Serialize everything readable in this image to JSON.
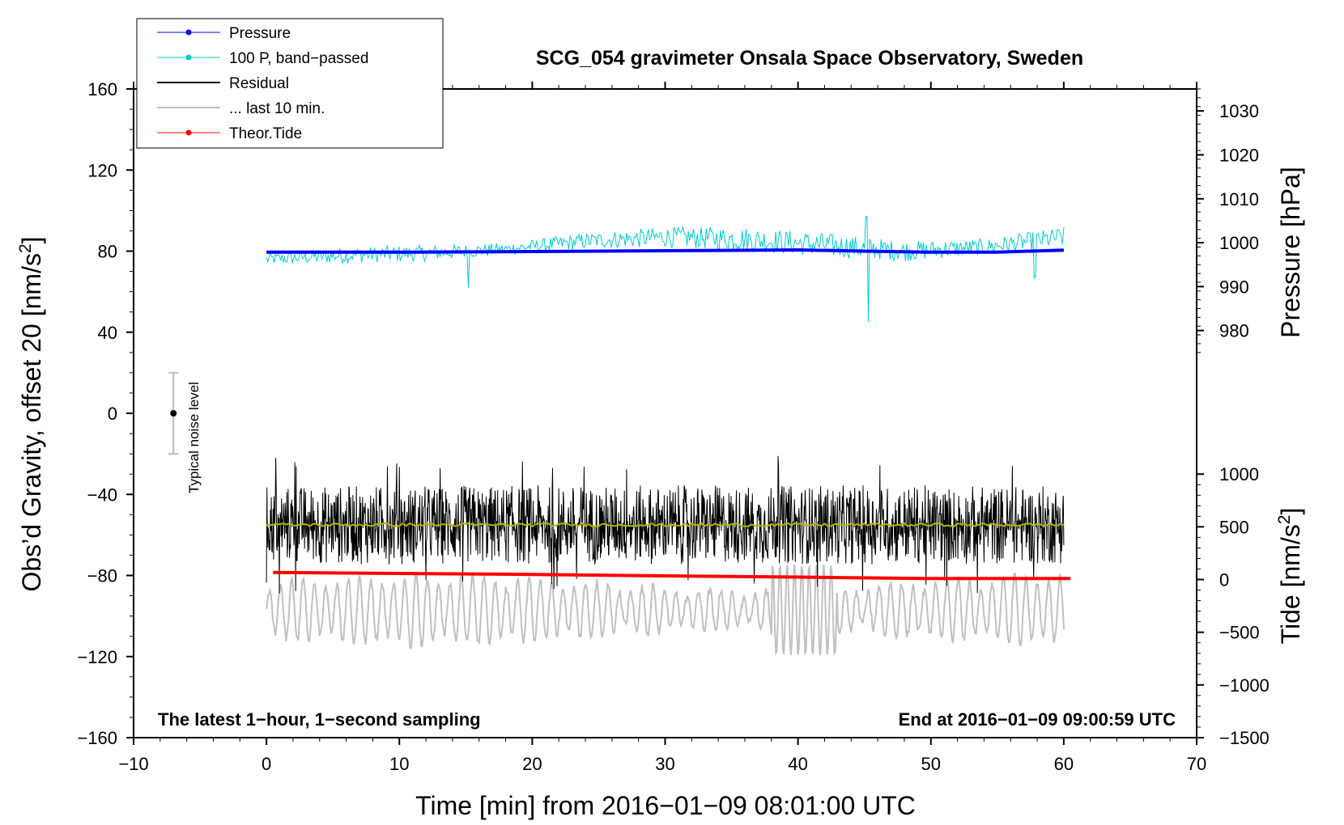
{
  "chart_data": {
    "type": "line",
    "title": "SCG_054 gravimeter Onsala Space Observatory, Sweden",
    "xlabel": "Time [min] from 2016−01−09 08:01:00 UTC",
    "ylabel_left_main": "Obs’d Gravity, offset 20 [nm/s",
    "ylabel_left_sup": "2",
    "ylabel_left_close": "]",
    "ylabel_pressure": "Pressure [hPa]",
    "ylabel_tide_main": "Tide [nm/s",
    "ylabel_tide_sup": "2",
    "ylabel_tide_close": "]",
    "xlim": [
      -10,
      70
    ],
    "ylim": [
      -160,
      160
    ],
    "x_ticks": [
      "−10",
      "0",
      "10",
      "20",
      "30",
      "40",
      "50",
      "60",
      "70"
    ],
    "x_tick_values": [
      -10,
      0,
      10,
      20,
      30,
      40,
      50,
      60,
      70
    ],
    "y_ticks": [
      "160",
      "120",
      "80",
      "40",
      "0",
      "−40",
      "−80",
      "−120",
      "−160"
    ],
    "y_tick_values": [
      160,
      120,
      80,
      40,
      0,
      -40,
      -80,
      -120,
      -160
    ],
    "pressure_axis": {
      "ticks": [
        "1030",
        "1020",
        "1010",
        "1000",
        "990",
        "980"
      ],
      "tick_values": [
        1030,
        1020,
        1010,
        1000,
        990,
        980
      ],
      "range": [
        975,
        1035
      ],
      "left_equivalent": [
        30,
        160
      ]
    },
    "tide_axis": {
      "ticks": [
        "1000",
        "500",
        "0",
        "−500",
        "−1000",
        "−1500"
      ],
      "tick_values": [
        1000,
        500,
        0,
        -500,
        -1000,
        -1500
      ],
      "range": [
        -1500,
        1000
      ],
      "left_equivalent": [
        -160,
        -30
      ]
    },
    "annotations": {
      "left": "The latest 1−hour, 1−second sampling",
      "right": "End at 2016−01−09 09:00:59 UTC",
      "noise_label": "Typical noise level"
    },
    "noise_bar": {
      "x": -7,
      "center": 0,
      "half_range": 20
    },
    "legend_position": "top-left",
    "legend": [
      {
        "label": "Pressure",
        "color": "#0000ff",
        "marker": true
      },
      {
        "label": "100 P, band−passed",
        "color": "#00cccc",
        "marker": true
      },
      {
        "label": "Residual",
        "color": "#000000",
        "marker": false
      },
      {
        "label": "... last 10 min.",
        "color": "#c0c0c0",
        "marker": false
      },
      {
        "label": "Theor.Tide",
        "color": "#ff0000",
        "marker": true
      }
    ],
    "series": [
      {
        "name": "Pressure",
        "color": "#0000ff",
        "x": [
          0,
          10,
          20,
          30,
          40,
          45,
          50,
          55,
          60
        ],
        "y": [
          79.5,
          79.5,
          79.8,
          80.2,
          80.6,
          80.0,
          79.5,
          79.5,
          80.5
        ]
      },
      {
        "name": "100 P, band−passed",
        "color": "#00cccc",
        "x_range": [
          0,
          60
        ],
        "baseline": [
          76,
          78,
          79,
          81,
          85,
          87,
          86,
          83,
          80,
          82,
          87
        ],
        "amplitude": [
          3,
          4,
          4,
          3,
          4,
          5,
          6,
          6,
          5,
          4,
          5
        ]
      },
      {
        "name": "Residual",
        "color": "#000000",
        "x_range": [
          0,
          60
        ],
        "mean": -55,
        "amplitude": 13
      },
      {
        "name": "Residual mean",
        "color": "#b5b500",
        "x": [
          0,
          20,
          40,
          60
        ],
        "y": [
          -55,
          -55,
          -55,
          -55
        ]
      },
      {
        "name": "... last 10 min.",
        "color": "#c0c0c0",
        "x_range": [
          0,
          60
        ],
        "mean": -97,
        "amplitude": 14
      },
      {
        "name": "Theor.Tide",
        "color": "#ff0000",
        "x": [
          0.5,
          10,
          20,
          30,
          40,
          50,
          60.5
        ],
        "y": [
          -78.5,
          -79.0,
          -79.5,
          -80.2,
          -80.8,
          -81.5,
          -81.5
        ]
      }
    ]
  }
}
